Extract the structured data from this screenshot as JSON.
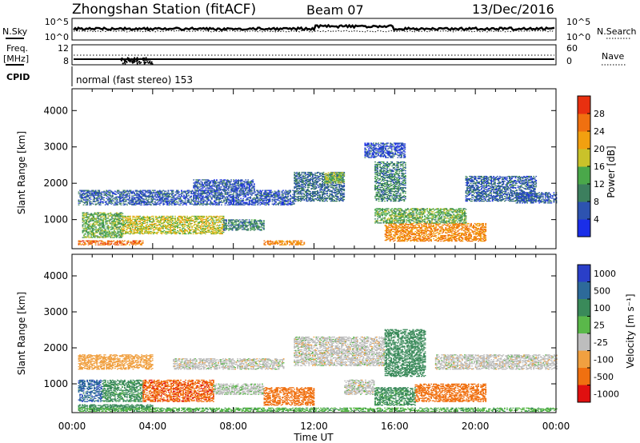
{
  "header": {
    "station": "Zhongshan Station (fitACF)",
    "beam": "Beam 07",
    "date": "13/Dec/2016"
  },
  "noise_panel": {
    "left_label": "N.Sky",
    "right_label": "N.Search",
    "ticks_left": [
      "10^5",
      "10^0"
    ],
    "ticks_right": [
      "10^5",
      "10^0"
    ]
  },
  "freq_panel": {
    "left_label_1": "Freq.",
    "left_label_2": "[MHz]",
    "ticks_left": [
      "12",
      "8"
    ],
    "ticks_right": [
      "60",
      "0"
    ],
    "right_label": "Nave"
  },
  "cpid": {
    "label": "CPID",
    "text": "normal (fast stereo) 153"
  },
  "range_axis": {
    "label": "Slant Range [km]",
    "ticks": [
      "1000",
      "2000",
      "3000",
      "4000"
    ],
    "ylim": [
      200,
      4600
    ]
  },
  "time_axis": {
    "label": "Time UT",
    "ticks": [
      "00:00",
      "04:00",
      "08:00",
      "12:00",
      "16:00",
      "20:00",
      "00:00"
    ],
    "xlim": [
      0,
      24
    ]
  },
  "power_scale": {
    "label": "Power [dB]",
    "ticks": [
      "4",
      "8",
      "12",
      "16",
      "20",
      "24",
      "28"
    ],
    "colors": [
      "#1a2ee8",
      "#2d53b0",
      "#3c7f5e",
      "#4aa84a",
      "#c9c22a",
      "#f2a010",
      "#f07010",
      "#e83010"
    ]
  },
  "velocity_scale": {
    "label": "Velocity [m s⁻¹]",
    "ticks": [
      "1000",
      "500",
      "100",
      "25",
      "-25",
      "-100",
      "-500",
      "-1000"
    ],
    "colors": [
      "#2a3fc8",
      "#2d6a9a",
      "#3a8a5a",
      "#5ab84a",
      "#bdbdbd",
      "#f0a040",
      "#f07010",
      "#e01010"
    ]
  },
  "chart_data": [
    {
      "type": "heatmap",
      "ylabel": "Slant Range [km]",
      "xlabel": "",
      "ylim": [
        200,
        4600
      ],
      "xlim": [
        0,
        24
      ],
      "colorbar": "Power [dB]",
      "regions": [
        {
          "t": [
            0.3,
            3.5
          ],
          "r": [
            300,
            420
          ],
          "v": 26
        },
        {
          "t": [
            0.5,
            2.5
          ],
          "r": [
            500,
            1200
          ],
          "v": 14
        },
        {
          "t": [
            2.5,
            7.5
          ],
          "r": [
            600,
            1100
          ],
          "v": 18
        },
        {
          "t": [
            7.5,
            9.5
          ],
          "r": [
            700,
            1000
          ],
          "v": 10
        },
        {
          "t": [
            0.3,
            3.0
          ],
          "r": [
            1400,
            1800
          ],
          "v": 7
        },
        {
          "t": [
            3.0,
            11.0
          ],
          "r": [
            1400,
            1800
          ],
          "v": 6
        },
        {
          "t": [
            6.0,
            9.0
          ],
          "r": [
            1800,
            2100
          ],
          "v": 6
        },
        {
          "t": [
            9.5,
            11.5
          ],
          "r": [
            300,
            420
          ],
          "v": 24
        },
        {
          "t": [
            11.0,
            13.5
          ],
          "r": [
            1500,
            2300
          ],
          "v": 8
        },
        {
          "t": [
            12.5,
            13.5
          ],
          "r": [
            2000,
            2300
          ],
          "v": 16
        },
        {
          "t": [
            15.0,
            16.5
          ],
          "r": [
            1500,
            2600
          ],
          "v": 10
        },
        {
          "t": [
            15.5,
            20.5
          ],
          "r": [
            400,
            900
          ],
          "v": 24
        },
        {
          "t": [
            15.0,
            19.5
          ],
          "r": [
            900,
            1300
          ],
          "v": 14
        },
        {
          "t": [
            19.5,
            23.0
          ],
          "r": [
            1500,
            2200
          ],
          "v": 7
        },
        {
          "t": [
            22.0,
            24.0
          ],
          "r": [
            1450,
            1750
          ],
          "v": 6
        },
        {
          "t": [
            14.5,
            16.5
          ],
          "r": [
            2700,
            3100
          ],
          "v": 5
        }
      ]
    },
    {
      "type": "heatmap",
      "ylabel": "Slant Range [km]",
      "xlabel": "Time UT",
      "ylim": [
        200,
        4600
      ],
      "xlim": [
        0,
        24
      ],
      "colorbar": "Velocity [m s⁻¹]",
      "regions": [
        {
          "t": [
            0.3,
            1.5
          ],
          "r": [
            500,
            1100
          ],
          "v": 800
        },
        {
          "t": [
            0.3,
            4.0
          ],
          "r": [
            280,
            420
          ],
          "v": 200
        },
        {
          "t": [
            1.5,
            3.5
          ],
          "r": [
            500,
            1100
          ],
          "v": 150
        },
        {
          "t": [
            3.5,
            7.0
          ],
          "r": [
            500,
            1100
          ],
          "v": -400
        },
        {
          "t": [
            7.0,
            9.5
          ],
          "r": [
            700,
            1000
          ],
          "v": 10
        },
        {
          "t": [
            0.3,
            4.0
          ],
          "r": [
            1400,
            1800
          ],
          "v": -60
        },
        {
          "t": [
            5.0,
            10.5
          ],
          "r": [
            1400,
            1700
          ],
          "v": 0
        },
        {
          "t": [
            9.5,
            12.0
          ],
          "r": [
            400,
            900
          ],
          "v": -300
        },
        {
          "t": [
            11.0,
            15.5
          ],
          "r": [
            1500,
            2300
          ],
          "v": 0
        },
        {
          "t": [
            13.5,
            15.0
          ],
          "r": [
            700,
            1100
          ],
          "v": 0
        },
        {
          "t": [
            15.0,
            17.0
          ],
          "r": [
            400,
            900
          ],
          "v": 150
        },
        {
          "t": [
            17.0,
            20.5
          ],
          "r": [
            500,
            1000
          ],
          "v": -300
        },
        {
          "t": [
            15.5,
            17.5
          ],
          "r": [
            1200,
            2500
          ],
          "v": 200
        },
        {
          "t": [
            18.0,
            24.0
          ],
          "r": [
            1400,
            1800
          ],
          "v": 0
        },
        {
          "t": [
            0.3,
            24.0
          ],
          "r": [
            230,
            320
          ],
          "v": 80
        }
      ]
    }
  ]
}
